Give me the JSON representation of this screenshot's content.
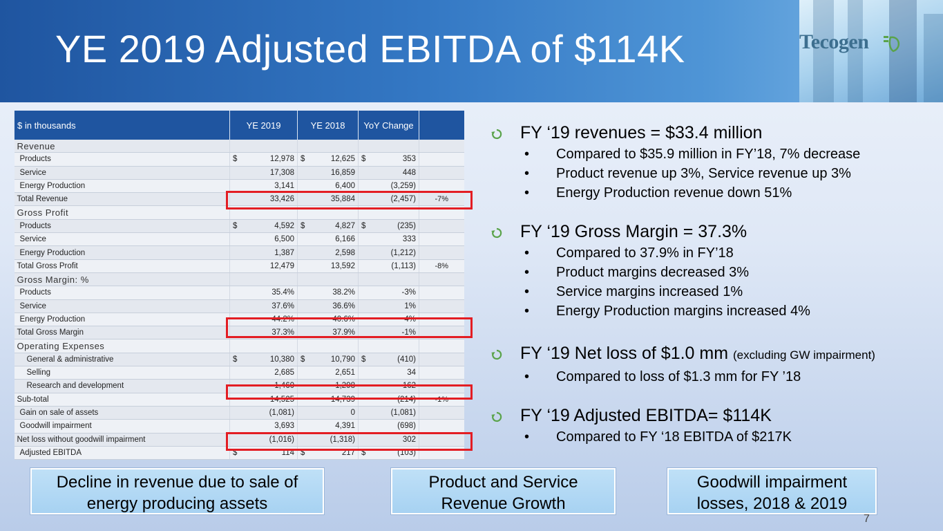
{
  "slide": {
    "title": "YE 2019 Adjusted EBITDA of $114K",
    "logo_text": "Tecogen",
    "page_number": "7"
  },
  "table": {
    "headers": [
      "$ in thousands",
      "YE 2019",
      "YE 2018",
      "YoY Change",
      ""
    ],
    "rows": [
      {
        "label": "Revenue",
        "style": "sec",
        "c1": "",
        "c2": "",
        "c3": "",
        "c4": ""
      },
      {
        "label": "Products",
        "style": "ind",
        "cur1": "$",
        "c1": "12,978",
        "cur2": "$",
        "c2": "12,625",
        "cur3": "$",
        "c3": "353",
        "c4": ""
      },
      {
        "label": "Service",
        "style": "ind",
        "c1": "17,308",
        "c2": "16,859",
        "c3": "448",
        "c4": ""
      },
      {
        "label": "Energy Production",
        "style": "ind",
        "c1": "3,141",
        "c2": "6,400",
        "c3": "(3,259)",
        "c4": ""
      },
      {
        "label": "Total Revenue",
        "style": "lbl",
        "c1": "33,426",
        "c2": "35,884",
        "c3": "(2,457)",
        "c4": "-7%"
      },
      {
        "label": "Gross Profit",
        "style": "sec",
        "c1": "",
        "c2": "",
        "c3": "",
        "c4": ""
      },
      {
        "label": "Products",
        "style": "ind",
        "cur1": "$",
        "c1": "4,592",
        "cur2": "$",
        "c2": "4,827",
        "cur3": "$",
        "c3": "(235)",
        "c4": ""
      },
      {
        "label": "Service",
        "style": "ind",
        "c1": "6,500",
        "c2": "6,166",
        "c3": "333",
        "c4": ""
      },
      {
        "label": "Energy Production",
        "style": "ind",
        "c1": "1,387",
        "c2": "2,598",
        "c3": "(1,212)",
        "c4": ""
      },
      {
        "label": "Total Gross Profit",
        "style": "lbl",
        "c1": "12,479",
        "c2": "13,592",
        "c3": "(1,113)",
        "c4": "-8%"
      },
      {
        "label": "Gross Margin: %",
        "style": "sec",
        "c1": "",
        "c2": "",
        "c3": "",
        "c4": ""
      },
      {
        "label": "Products",
        "style": "ind",
        "c1": "35.4%",
        "c2": "38.2%",
        "c3": "-3%",
        "c4": ""
      },
      {
        "label": "Service",
        "style": "ind",
        "c1": "37.6%",
        "c2": "36.6%",
        "c3": "1%",
        "c4": ""
      },
      {
        "label": "Energy Production",
        "style": "ind",
        "c1": "44.2%",
        "c2": "40.6%",
        "c3": "4%",
        "c4": ""
      },
      {
        "label": "Total Gross Margin",
        "style": "lbl",
        "c1": "37.3%",
        "c2": "37.9%",
        "c3": "-1%",
        "c4": ""
      },
      {
        "label": "Operating Expenses",
        "style": "sec",
        "c1": "",
        "c2": "",
        "c3": "",
        "c4": ""
      },
      {
        "label": "General & administrative",
        "style": "ind2",
        "cur1": "$",
        "c1": "10,380",
        "cur2": "$",
        "c2": "10,790",
        "cur3": "$",
        "c3": "(410)",
        "c4": ""
      },
      {
        "label": "Selling",
        "style": "ind2",
        "c1": "2,685",
        "c2": "2,651",
        "c3": "34",
        "c4": ""
      },
      {
        "label": "Research and development",
        "style": "ind2",
        "c1": "1,460",
        "c2": "1,298",
        "c3": "162",
        "c4": ""
      },
      {
        "label": "Sub-total",
        "style": "lbl",
        "c1": "14,525",
        "c2": "14,739",
        "c3": "(214)",
        "c4": "-1%"
      },
      {
        "label": "Gain on sale of assets",
        "style": "ind",
        "c1": "(1,081)",
        "c2": "0",
        "c3": "(1,081)",
        "c4": ""
      },
      {
        "label": "Goodwill impairment",
        "style": "ind",
        "c1": "3,693",
        "c2": "4,391",
        "c3": "(698)",
        "c4": ""
      },
      {
        "label": "Net loss without goodwill impairment",
        "style": "lbl",
        "c1": "(1,016)",
        "c2": "(1,318)",
        "c3": "302",
        "c4": ""
      },
      {
        "label": "Adjusted EBITDA",
        "style": "ind",
        "cur1": "$",
        "c1": "114",
        "cur2": "$",
        "c2": "217",
        "cur3": "$",
        "c3": "(103)",
        "c4": ""
      }
    ]
  },
  "bullets": [
    {
      "head": "FY ‘19 revenues = $33.4 million",
      "head_small": "",
      "items": [
        "Compared to $35.9 million in FY’18, 7% decrease",
        "Product revenue up 3%, Service revenue up 3%",
        "Energy Production revenue down 51%"
      ]
    },
    {
      "head": "FY ‘19 Gross Margin = 37.3%",
      "head_small": "",
      "items": [
        "Compared to 37.9% in FY’18",
        "Product margins decreased 3%",
        "Service margins  increased 1%",
        "Energy Production margins increased 4%"
      ]
    },
    {
      "head": "FY ‘19 Net loss of $1.0 mm",
      "head_small": "(excluding GW impairment)",
      "items": [
        "Compared to loss of $1.3 mm for FY ’18"
      ]
    },
    {
      "head": "FY ‘19 Adjusted EBITDA= $114K",
      "head_small": "",
      "items": [
        "Compared to FY ‘18  EBITDA of $217K"
      ]
    }
  ],
  "boxes": [
    {
      "line1": "Decline in revenue due to sale of",
      "line2": "energy producing assets"
    },
    {
      "line1": "Product and Service",
      "line2": "Revenue Growth"
    },
    {
      "line1": "Goodwill impairment",
      "line2": "losses, 2018 & 2019"
    }
  ],
  "colors": {
    "header_blue": "#1f55a0",
    "highlight_red": "#e31d23",
    "box_fill": "#a7d2f2"
  }
}
